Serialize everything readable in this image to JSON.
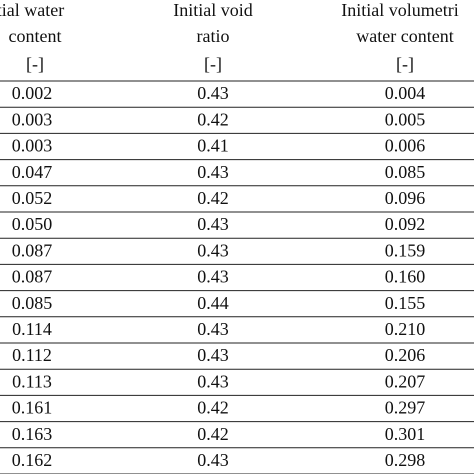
{
  "table": {
    "header": [
      [
        "itial water",
        "content",
        "[-]"
      ],
      [
        "Initial void",
        "ratio",
        "[-]"
      ],
      [
        "Initial volumetri",
        "water content",
        "[-]"
      ]
    ],
    "rows": [
      [
        "0.002",
        "0.43",
        "0.004"
      ],
      [
        "0.003",
        "0.42",
        "0.005"
      ],
      [
        "0.003",
        "0.41",
        "0.006"
      ],
      [
        "0.047",
        "0.43",
        "0.085"
      ],
      [
        "0.052",
        "0.42",
        "0.096"
      ],
      [
        "0.050",
        "0.43",
        "0.092"
      ],
      [
        "0.087",
        "0.43",
        "0.159"
      ],
      [
        "0.087",
        "0.43",
        "0.160"
      ],
      [
        "0.085",
        "0.44",
        "0.155"
      ],
      [
        "0.114",
        "0.43",
        "0.210"
      ],
      [
        "0.112",
        "0.43",
        "0.206"
      ],
      [
        "0.113",
        "0.43",
        "0.207"
      ],
      [
        "0.161",
        "0.42",
        "0.297"
      ],
      [
        "0.163",
        "0.42",
        "0.301"
      ],
      [
        "0.162",
        "0.43",
        "0.298"
      ]
    ]
  }
}
